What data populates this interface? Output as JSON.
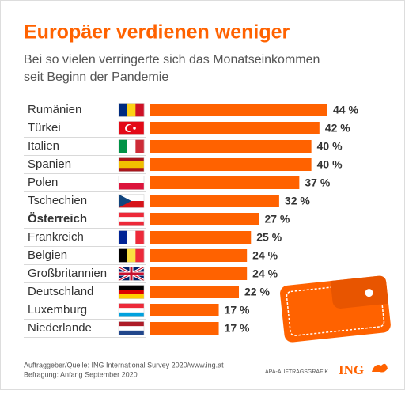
{
  "chart_data": {
    "type": "barh",
    "title": "Europäer verdienen weniger",
    "subtitle": [
      "Bei so vielen verringerte sich das Monatseinkommen",
      "seit Beginn der Pandemie"
    ],
    "categories": [
      "Rumänien",
      "Türkei",
      "Italien",
      "Spanien",
      "Polen",
      "Tschechien",
      "Österreich",
      "Frankreich",
      "Belgien",
      "Großbritannien",
      "Deutschland",
      "Luxemburg",
      "Niederlande"
    ],
    "values": [
      44,
      42,
      40,
      40,
      37,
      32,
      27,
      25,
      24,
      24,
      22,
      17,
      17
    ],
    "value_labels": [
      "44 %",
      "42 %",
      "40 %",
      "40 %",
      "37 %",
      "32 %",
      "27 %",
      "25 %",
      "24 %",
      "24 %",
      "22 %",
      "17 %",
      "17 %"
    ],
    "color": "#ff6200",
    "bold_category": "Österreich",
    "source": [
      "Auftraggeber/Quelle: ING International Survey 2020/www.ing.at",
      "Befragung: Anfang September 2020"
    ],
    "credit": "APA-AUFTRAGSGRAFIK",
    "logo": "ING"
  }
}
